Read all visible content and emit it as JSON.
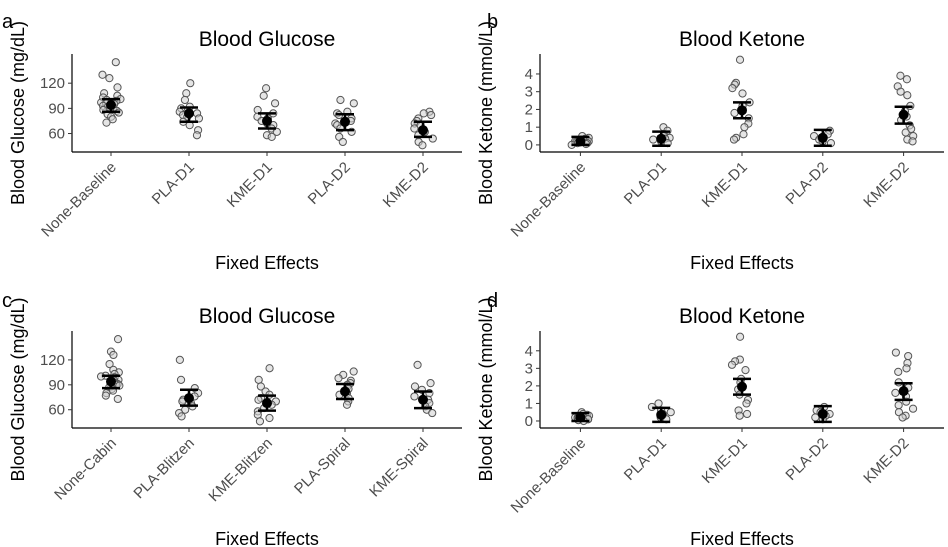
{
  "chart_data": [
    {
      "panel": "a",
      "type": "scatter",
      "title": "Blood Glucose",
      "xlabel": "Fixed Effects",
      "ylabel": "Blood Glucose (mg/dL)",
      "ylim": [
        38,
        150
      ],
      "yticks": [
        60,
        90,
        120
      ],
      "categories": [
        "None-Baseline",
        "PLA-D1",
        "KME-D1",
        "PLA-D2",
        "KME-D2"
      ],
      "points": [
        [
          145,
          130,
          126,
          115,
          108,
          105,
          103,
          101,
          100,
          99,
          97,
          96,
          95,
          94,
          93,
          92,
          91,
          90,
          89,
          88,
          87,
          85,
          83,
          80,
          77,
          73
        ],
        [
          120,
          108,
          100,
          92,
          90,
          86,
          84,
          82,
          80,
          78,
          74,
          70,
          64,
          58
        ],
        [
          114,
          105,
          96,
          88,
          84,
          80,
          78,
          75,
          72,
          70,
          66,
          62,
          58,
          56
        ],
        [
          100,
          96,
          86,
          84,
          82,
          78,
          75,
          72,
          70,
          66,
          62,
          56,
          50
        ],
        [
          86,
          84,
          82,
          78,
          75,
          72,
          70,
          66,
          62,
          58,
          54,
          50,
          46
        ]
      ],
      "means": [
        94,
        84,
        75,
        74,
        64
      ],
      "ci_low": [
        86,
        74,
        66,
        64,
        56
      ],
      "ci_high": [
        101,
        91,
        84,
        83,
        74
      ]
    },
    {
      "panel": "b",
      "type": "scatter",
      "title": "Blood Ketone",
      "xlabel": "Fixed Effects",
      "ylabel": "Blood Ketone (mmol/L)",
      "ylim": [
        -0.4,
        4.9
      ],
      "yticks": [
        0,
        1,
        2,
        3,
        4
      ],
      "categories": [
        "None-Baseline",
        "PLA-D1",
        "KME-D1",
        "PLA-D2",
        "KME-D2"
      ],
      "points": [
        [
          0.5,
          0.4,
          0.35,
          0.3,
          0.3,
          0.25,
          0.2,
          0.2,
          0.15,
          0.1,
          0.1,
          0.05,
          0.0
        ],
        [
          1.0,
          0.8,
          0.6,
          0.5,
          0.4,
          0.35,
          0.3,
          0.2,
          0.1
        ],
        [
          4.8,
          3.5,
          3.4,
          3.2,
          2.9,
          2.4,
          2.2,
          1.8,
          1.5,
          1.2,
          1.0,
          0.6,
          0.4,
          0.3
        ],
        [
          0.8,
          0.6,
          0.5,
          0.4,
          0.3,
          0.2,
          0.1
        ],
        [
          3.9,
          3.7,
          3.3,
          3.0,
          2.8,
          2.2,
          1.9,
          1.6,
          1.4,
          1.1,
          0.9,
          0.7,
          0.5,
          0.3,
          0.2
        ]
      ],
      "means": [
        0.2,
        0.35,
        1.95,
        0.4,
        1.7
      ],
      "ci_low": [
        0.0,
        -0.05,
        1.5,
        -0.05,
        1.2
      ],
      "ci_high": [
        0.45,
        0.75,
        2.4,
        0.85,
        2.15
      ]
    },
    {
      "panel": "c",
      "type": "scatter",
      "title": "Blood Glucose",
      "xlabel": "Fixed Effects",
      "ylabel": "Blood Glucose (mg/dL)",
      "ylim": [
        38,
        150
      ],
      "yticks": [
        60,
        90,
        120
      ],
      "categories": [
        "None-Cabin",
        "PLA-Blitzen",
        "KME-Blitzen",
        "PLA-Spiral",
        "KME-Spiral"
      ],
      "points": [
        [
          145,
          130,
          126,
          115,
          108,
          105,
          103,
          101,
          100,
          99,
          97,
          96,
          95,
          94,
          93,
          92,
          91,
          90,
          89,
          88,
          87,
          85,
          83,
          80,
          77,
          73
        ],
        [
          120,
          96,
          86,
          80,
          76,
          72,
          70,
          68,
          64,
          60,
          56,
          52
        ],
        [
          110,
          96,
          88,
          82,
          78,
          74,
          72,
          70,
          66,
          62,
          58,
          54,
          50,
          46
        ],
        [
          106,
          102,
          98,
          95,
          92,
          90,
          88,
          85,
          82,
          80,
          78,
          74,
          70,
          66
        ],
        [
          114,
          92,
          88,
          84,
          80,
          76,
          72,
          68,
          64,
          60,
          56
        ]
      ],
      "means": [
        94,
        74,
        68,
        82,
        72
      ],
      "ci_low": [
        86,
        65,
        59,
        73,
        62
      ],
      "ci_high": [
        101,
        84,
        77,
        91,
        82
      ]
    },
    {
      "panel": "d",
      "type": "scatter",
      "title": "Blood Ketone",
      "xlabel": "Fixed Effects",
      "ylabel": "Blood Ketone (mmol/L)",
      "ylim": [
        -0.4,
        4.9
      ],
      "yticks": [
        0,
        1,
        2,
        3,
        4
      ],
      "categories": [
        "None-Baseline",
        "PLA-D1",
        "KME-D1",
        "PLA-D2",
        "KME-D2"
      ],
      "points": [
        [
          0.5,
          0.4,
          0.35,
          0.3,
          0.3,
          0.25,
          0.2,
          0.2,
          0.15,
          0.1,
          0.1,
          0.05,
          0.0
        ],
        [
          1.0,
          0.8,
          0.6,
          0.5,
          0.4,
          0.35,
          0.3,
          0.2,
          0.1
        ],
        [
          4.8,
          3.5,
          3.4,
          3.2,
          2.9,
          2.4,
          2.2,
          1.8,
          1.5,
          1.2,
          1.0,
          0.6,
          0.4,
          0.3
        ],
        [
          0.8,
          0.6,
          0.5,
          0.4,
          0.3,
          0.2,
          0.1
        ],
        [
          3.9,
          3.7,
          3.3,
          3.0,
          2.8,
          2.2,
          1.9,
          1.6,
          1.4,
          1.1,
          0.9,
          0.7,
          0.5,
          0.3,
          0.2
        ]
      ],
      "means": [
        0.2,
        0.35,
        1.95,
        0.4,
        1.7
      ],
      "ci_low": [
        0.0,
        -0.05,
        1.5,
        -0.05,
        1.2
      ],
      "ci_high": [
        0.45,
        0.75,
        2.4,
        0.85,
        2.15
      ]
    }
  ]
}
